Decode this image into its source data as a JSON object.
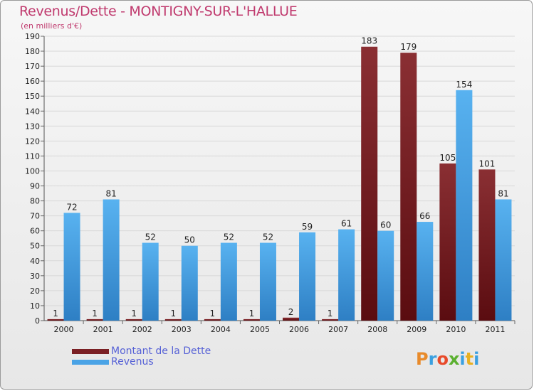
{
  "header": {
    "title": "Revenus/Dette - MONTIGNY-SUR-L'HALLUE",
    "subtitle": "(en milliers d'€)"
  },
  "logo": {
    "text": "Proxiti",
    "letters": [
      {
        "char": "P",
        "color": "#e88a2a"
      },
      {
        "char": "r",
        "color": "#3aa0e0"
      },
      {
        "char": "o",
        "color": "#e84a2a"
      },
      {
        "char": "x",
        "color": "#5bb030"
      },
      {
        "char": "i",
        "color": "#3aa0e0"
      },
      {
        "char": "t",
        "color": "#e8b020"
      },
      {
        "char": "i",
        "color": "#3aa0e0"
      }
    ]
  },
  "colors": {
    "dette": "#7a1f24",
    "revenus": "#4aa3e6",
    "axis_text": "#222222",
    "grid": "#d8d8d8"
  },
  "chart_data": {
    "type": "bar",
    "title": "Revenus/Dette - MONTIGNY-SUR-L'HALLUE",
    "subtitle": "(en milliers d'€)",
    "categories": [
      "2000",
      "2001",
      "2002",
      "2003",
      "2004",
      "2005",
      "2006",
      "2007",
      "2008",
      "2009",
      "2010",
      "2011"
    ],
    "series": [
      {
        "name": "Montant de la Dette",
        "values": [
          1,
          1,
          1,
          1,
          1,
          1,
          2,
          1,
          183,
          179,
          105,
          101
        ]
      },
      {
        "name": "Revenus",
        "values": [
          72,
          81,
          52,
          50,
          52,
          52,
          59,
          61,
          60,
          66,
          154,
          81
        ]
      }
    ],
    "ylim": [
      0,
      190
    ],
    "yticks": [
      0,
      10,
      20,
      30,
      40,
      50,
      60,
      70,
      80,
      90,
      100,
      110,
      120,
      130,
      140,
      150,
      160,
      170,
      180,
      190
    ],
    "grid": true,
    "legend": "bottom-left"
  }
}
